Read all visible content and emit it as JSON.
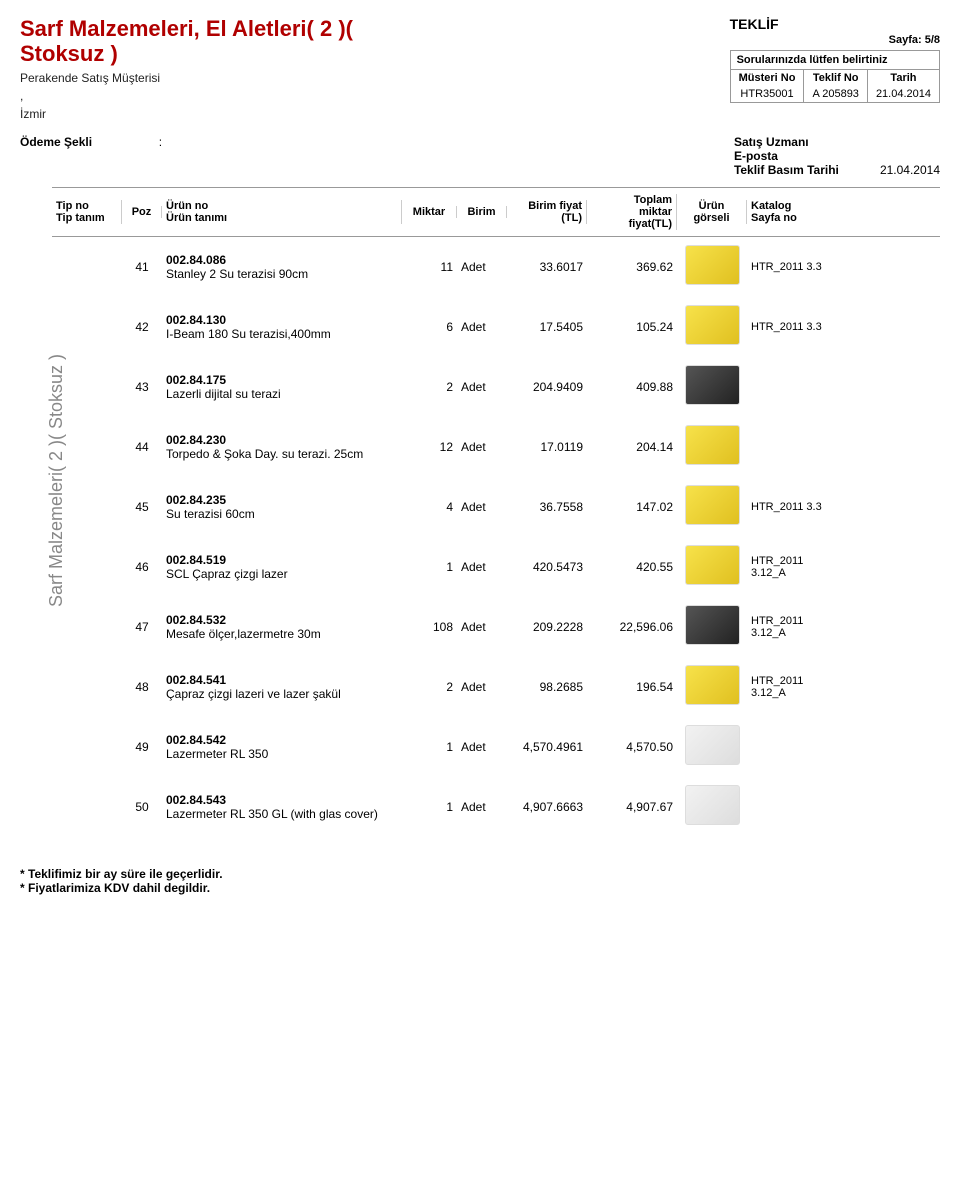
{
  "header": {
    "title": "Sarf Malzemeleri, El Aletleri( 2 )( Stoksuz )",
    "subtitle1": "Perakende Satış Müşterisi",
    "subtitle2": ",",
    "subtitle3": "İzmir"
  },
  "teklif": {
    "title": "TEKLİF",
    "page": "Sayfa: 5/8",
    "note": "Sorularınızda lütfen belirtiniz",
    "cols": {
      "c1": "Müsteri No",
      "c2": "Teklif No",
      "c3": "Tarih"
    },
    "vals": {
      "c1": "HTR35001",
      "c2": "A 205893",
      "c3": "21.04.2014"
    }
  },
  "meta": {
    "left_label": "Ödeme Şekli",
    "left_sep": ":",
    "r1_label": "Satış Uzmanı",
    "r2_label": "E-posta",
    "r3_label": "Teklif Basım Tarihi",
    "r3_val": "21.04.2014"
  },
  "columns": {
    "typeno": "Tip no\nTip tanım",
    "poz": "Poz",
    "product": "Ürün no\nÜrün tanımı",
    "qty": "Miktar",
    "unit": "Birim",
    "unitprice": "Birim fiyat\n(TL)",
    "total": "Toplam\nmiktar\nfiyat(TL)",
    "img": "Ürün\ngörseli",
    "catalog": "Katalog\nSayfa no"
  },
  "side_label": "Sarf Malzemeleri( 2 )( Stoksuz )",
  "rows": [
    {
      "poz": "41",
      "code": "002.84.086",
      "name": "Stanley 2 Su terazisi 90cm",
      "qty": "11",
      "unit": "Adet",
      "unitprice": "33.6017",
      "total": "369.62",
      "imgclass": "",
      "catalog": "HTR_2011 3.3"
    },
    {
      "poz": "42",
      "code": "002.84.130",
      "name": "I-Beam 180 Su terazisi,400mm",
      "qty": "6",
      "unit": "Adet",
      "unitprice": "17.5405",
      "total": "105.24",
      "imgclass": "",
      "catalog": "HTR_2011 3.3"
    },
    {
      "poz": "43",
      "code": "002.84.175",
      "name": "Lazerli dijital su terazi",
      "qty": "2",
      "unit": "Adet",
      "unitprice": "204.9409",
      "total": "409.88",
      "imgclass": "dark",
      "catalog": ""
    },
    {
      "poz": "44",
      "code": "002.84.230",
      "name": "Torpedo & Şoka Day. su terazi. 25cm",
      "qty": "12",
      "unit": "Adet",
      "unitprice": "17.0119",
      "total": "204.14",
      "imgclass": "",
      "catalog": ""
    },
    {
      "poz": "45",
      "code": "002.84.235",
      "name": "Su terazisi 60cm",
      "qty": "4",
      "unit": "Adet",
      "unitprice": "36.7558",
      "total": "147.02",
      "imgclass": "",
      "catalog": "HTR_2011 3.3"
    },
    {
      "poz": "46",
      "code": "002.84.519",
      "name": "SCL Çapraz çizgi lazer",
      "qty": "1",
      "unit": "Adet",
      "unitprice": "420.5473",
      "total": "420.55",
      "imgclass": "",
      "catalog": "HTR_2011 3.12_A"
    },
    {
      "poz": "47",
      "code": "002.84.532",
      "name": "Mesafe ölçer,lazermetre 30m",
      "qty": "108",
      "unit": "Adet",
      "unitprice": "209.2228",
      "total": "22,596.06",
      "imgclass": "dark",
      "catalog": "HTR_2011 3.12_A"
    },
    {
      "poz": "48",
      "code": "002.84.541",
      "name": "Çapraz çizgi lazeri ve lazer şakül",
      "qty": "2",
      "unit": "Adet",
      "unitprice": "98.2685",
      "total": "196.54",
      "imgclass": "",
      "catalog": "HTR_2011 3.12_A"
    },
    {
      "poz": "49",
      "code": "002.84.542",
      "name": "Lazermeter RL 350",
      "qty": "1",
      "unit": "Adet",
      "unitprice": "4,570.4961",
      "total": "4,570.50",
      "imgclass": "light",
      "catalog": ""
    },
    {
      "poz": "50",
      "code": "002.84.543",
      "name": "Lazermeter RL 350 GL (with glas cover)",
      "qty": "1",
      "unit": "Adet",
      "unitprice": "4,907.6663",
      "total": "4,907.67",
      "imgclass": "light",
      "catalog": ""
    }
  ],
  "footer": {
    "l1": "* Teklifimiz bir ay süre ile geçerlidir.",
    "l2": "* Fiyatlarimiza KDV dahil degildir."
  }
}
